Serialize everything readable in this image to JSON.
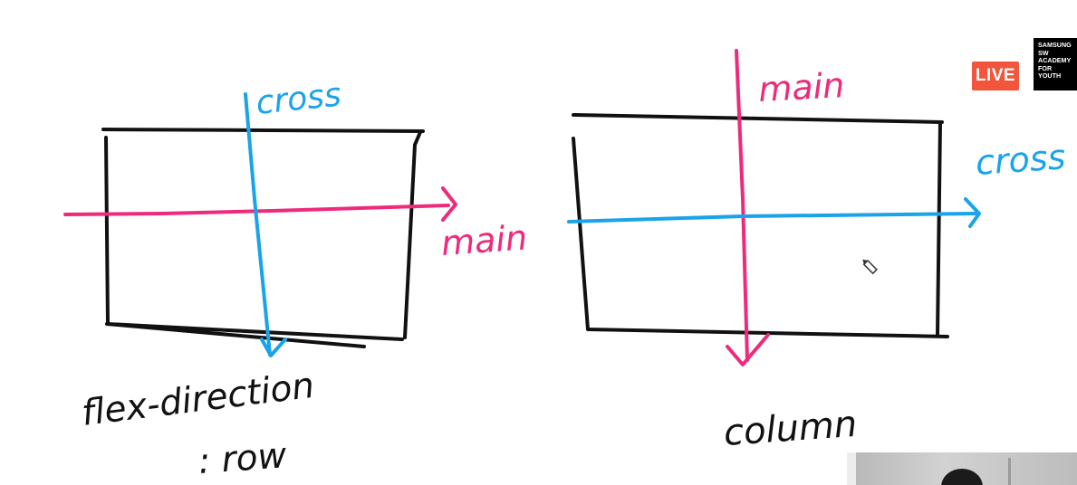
{
  "diagram_left": {
    "cross_label": "cross",
    "main_label": "main",
    "caption_line1": "flex-direction",
    "caption_line2": ": row"
  },
  "diagram_right": {
    "cross_label": "cross",
    "main_label": "main",
    "caption": "column"
  },
  "overlay": {
    "live_label": "LIVE",
    "academy_logo_lines": [
      "SAMSUNG",
      "SW",
      "ACADEMY",
      "FOR",
      "YOUTH"
    ]
  },
  "colors": {
    "main_axis": "#ee2a7b",
    "cross_axis": "#1aa3e8",
    "box_outline": "#111111",
    "live_badge": "#f2553c"
  },
  "icons": {
    "cursor": "pencil-cursor-icon"
  }
}
